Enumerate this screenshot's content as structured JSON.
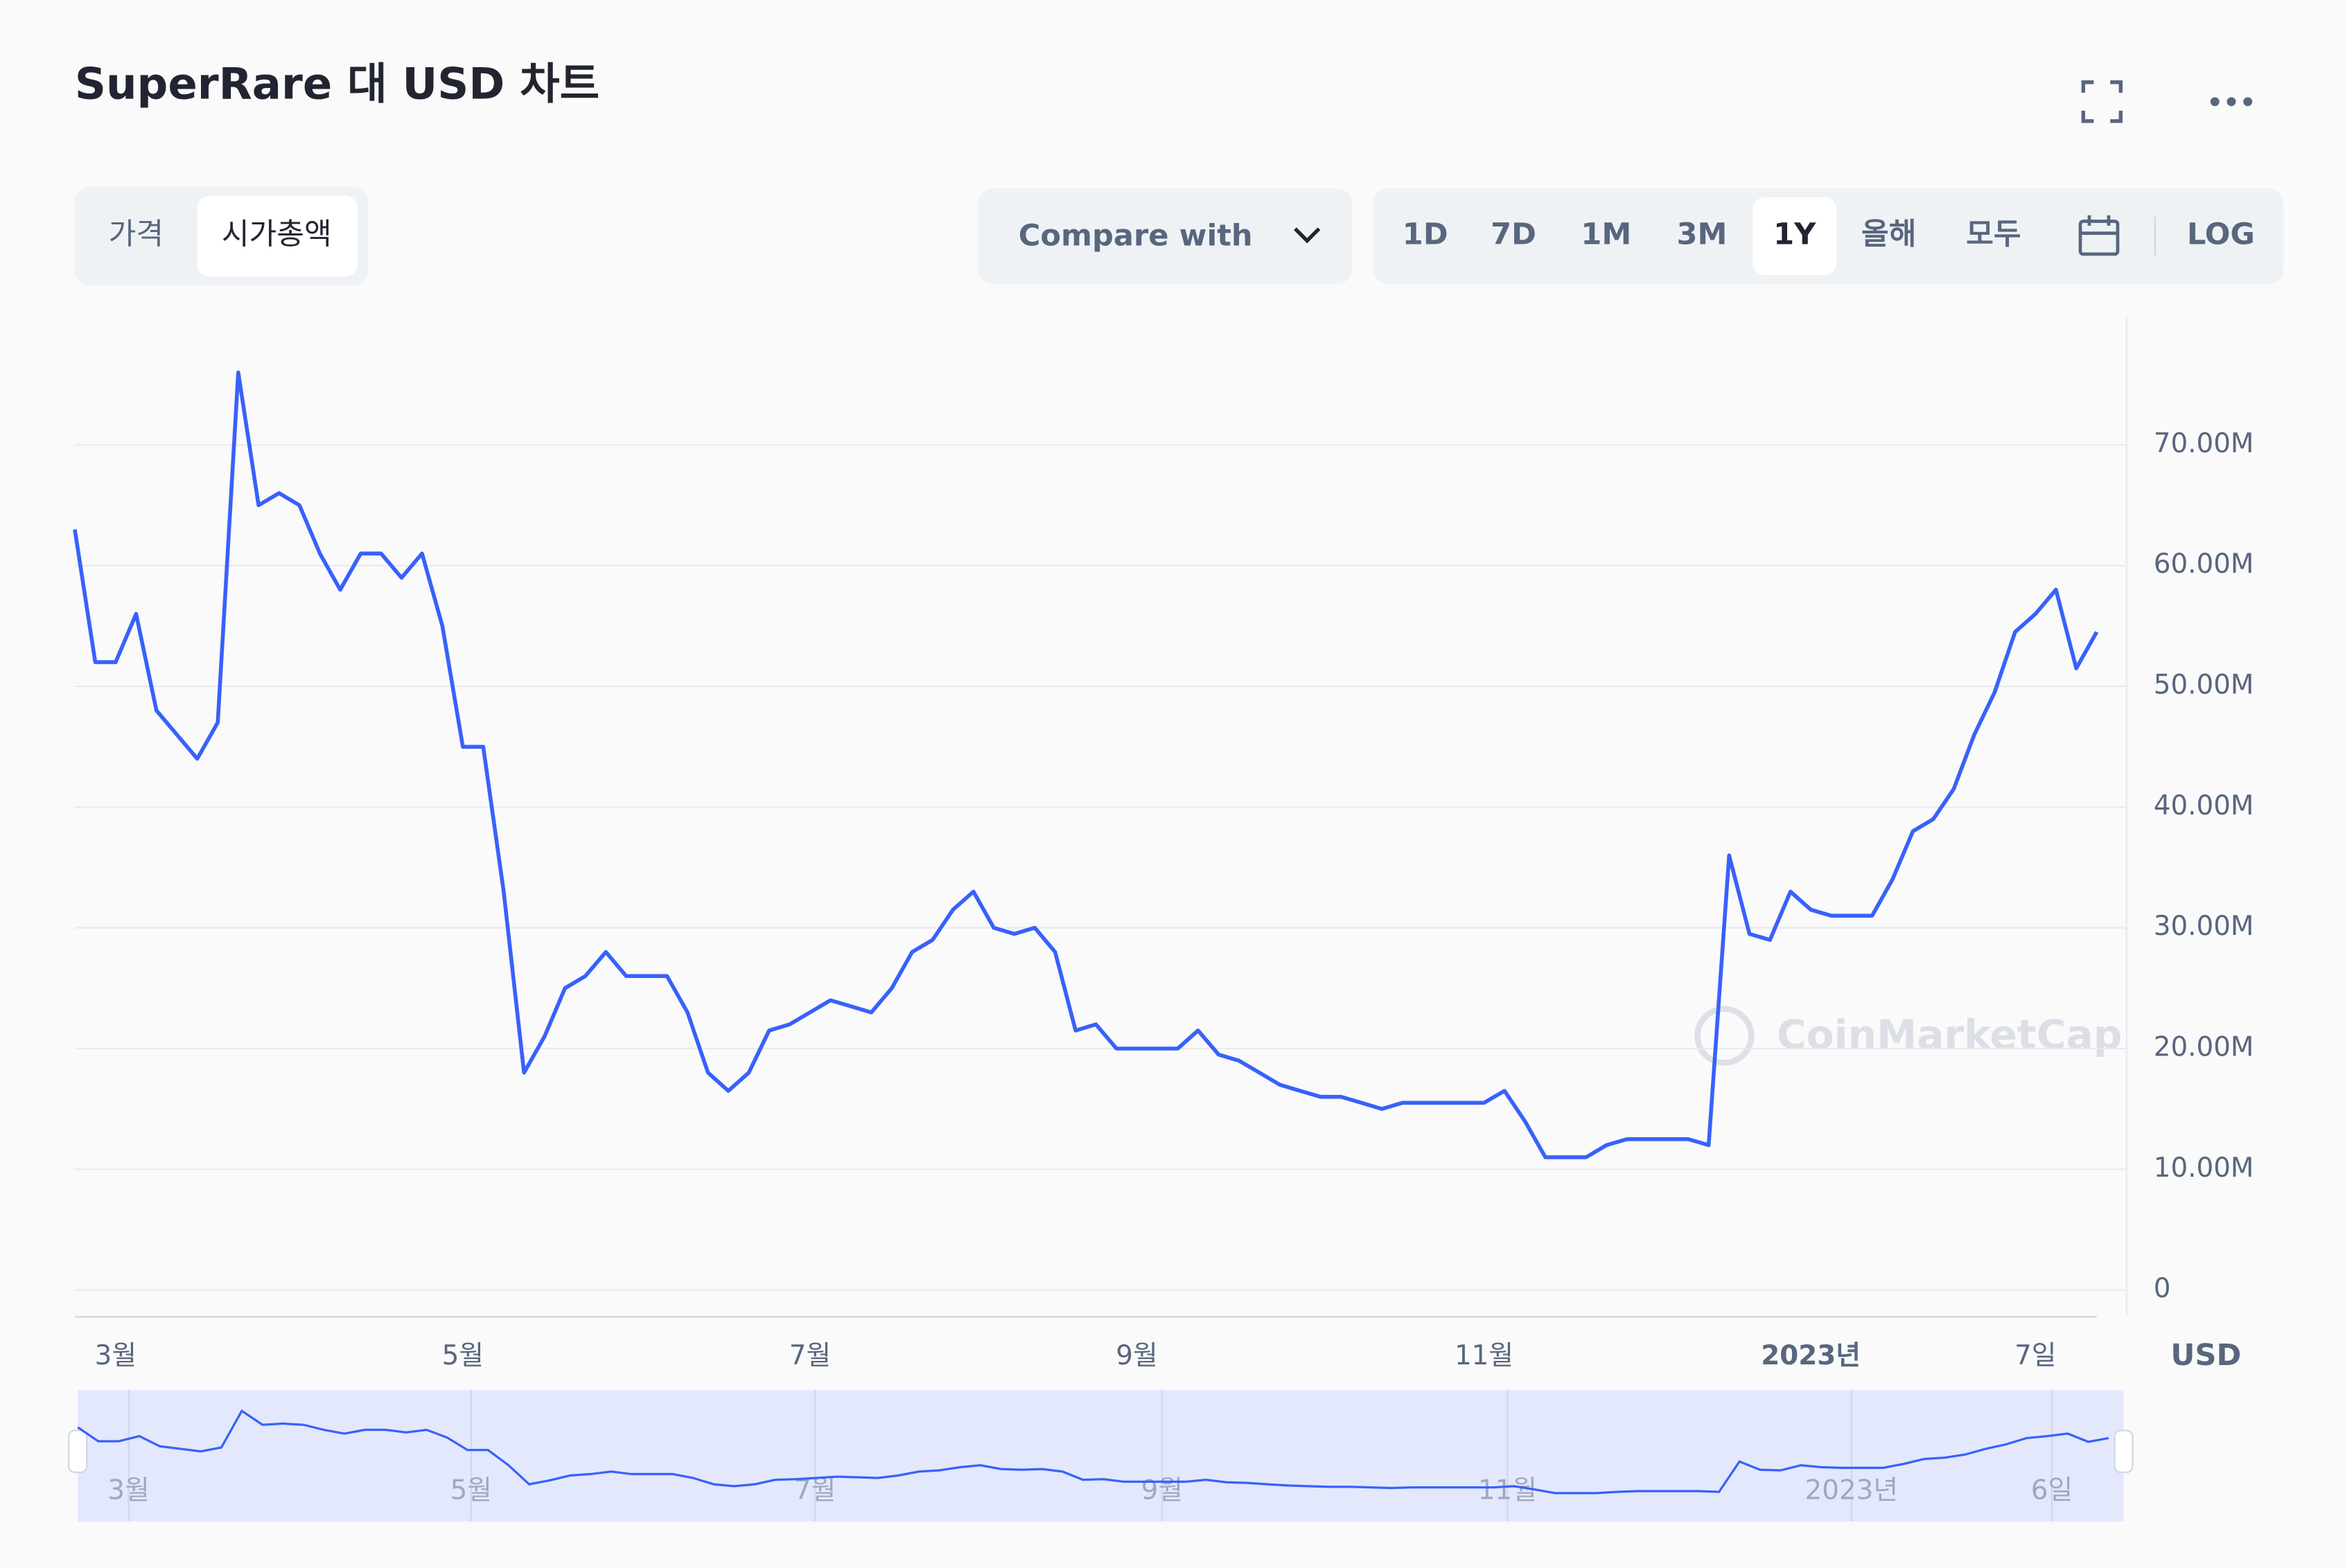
{
  "ui": {
    "title": "SuperRare 대 USD 차트",
    "tabs": [
      "가격",
      "시가총액"
    ],
    "compare": "Compare with",
    "ranges": [
      "1D",
      "7D",
      "1M",
      "3M",
      "1Y",
      "올해",
      "모두"
    ],
    "log": "LOG",
    "currency": "USD",
    "watermark": "CoinMarketCap",
    "navigator_labels": [
      "3월",
      "5월",
      "7월",
      "9월",
      "11월",
      "2023년",
      "6일"
    ]
  },
  "chart_data": {
    "type": "line",
    "categories": [
      null,
      null,
      "3월",
      null,
      null,
      null,
      null,
      null,
      null,
      null,
      null,
      null,
      null,
      null,
      null,
      null,
      null,
      null,
      null,
      "5월",
      null,
      null,
      null,
      null,
      null,
      null,
      null,
      null,
      null,
      null,
      null,
      null,
      null,
      null,
      null,
      null,
      "7월",
      null,
      null,
      null,
      null,
      null,
      null,
      null,
      null,
      null,
      null,
      null,
      null,
      null,
      null,
      null,
      "9월",
      null,
      null,
      null,
      null,
      null,
      null,
      null,
      null,
      null,
      null,
      null,
      null,
      null,
      null,
      null,
      null,
      "11월",
      null,
      null,
      null,
      null,
      null,
      null,
      null,
      null,
      null,
      null,
      null,
      null,
      null,
      null,
      null,
      "2023년",
      null,
      null,
      null,
      null,
      null,
      null,
      null,
      null,
      null,
      null,
      "7일",
      null,
      null,
      null
    ],
    "series": [
      {
        "name": "시가총액",
        "color": "#3861fb",
        "values": [
          63,
          52,
          52,
          56,
          48,
          46,
          44,
          47,
          76,
          65,
          66,
          65,
          61,
          58,
          61,
          61,
          59,
          61,
          55,
          45,
          45,
          33,
          18,
          21,
          25,
          26,
          28,
          26,
          26,
          26,
          23,
          18,
          16.5,
          18,
          21.5,
          22,
          23,
          24,
          23.5,
          23,
          25,
          28,
          29,
          31.5,
          33,
          30,
          29.5,
          30,
          28,
          21.5,
          22,
          20,
          20,
          20,
          20,
          21.5,
          19.5,
          19,
          18,
          17,
          16.5,
          16,
          16,
          15.5,
          15,
          15.5,
          15.5,
          15.5,
          15.5,
          15.5,
          16.5,
          14,
          11,
          11,
          11,
          12,
          12.5,
          12.5,
          12.5,
          12.5,
          12,
          36,
          29.5,
          29,
          33,
          31.5,
          31,
          31,
          31,
          34,
          38,
          39,
          41.5,
          46,
          49.5,
          54.5,
          56,
          58,
          51.5,
          54.5
        ]
      }
    ],
    "ylim": [
      -2.1,
      80.6
    ],
    "yticks": [
      0,
      {
        "value": 10,
        "label": "10.00M"
      },
      {
        "value": 20,
        "label": "20.00M"
      },
      {
        "value": 30,
        "label": "30.00M"
      },
      {
        "value": 40,
        "label": "40.00M"
      },
      {
        "value": 50,
        "label": "50.00M"
      },
      {
        "value": 60,
        "label": "60.00M"
      },
      {
        "value": 70,
        "label": "70.00M"
      }
    ],
    "grid": true
  }
}
